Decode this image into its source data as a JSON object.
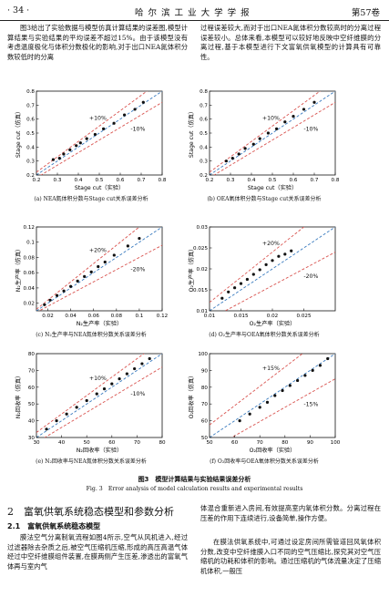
{
  "header": {
    "page": "· 34 ·",
    "journal": "哈 尔 滨 工 业 大 学 学 报",
    "volume": "第57卷"
  },
  "top_left_paragraph": "图3给出了实验数据与模型仿真计算结果的误差图,模型计算结果与实验结果的平均误差不超过15%。由于该模型没有考虑温度极化与体积分数极化的影响,对于出口NEA氮体积分数较低时的分离",
  "top_right_paragraph": "过程误差较大,而对于出口NEA氮体积分数较高时的分离过程误差较小。总体来看,本模型可以较好地反映中空纤维膜的分离过程,基于本模型进行下文富氧供氧模型的计算具有可靠性。",
  "chart_data": [
    {
      "type": "scatter",
      "caption": "(a) NEA氮体积分数与Stage cut关系误差分析",
      "xlabel": "Stage cut（实验）",
      "ylabel": "Stage cut（仿真）",
      "xlim": [
        0.2,
        0.8
      ],
      "ylim": [
        0.2,
        0.8
      ],
      "xticks": [
        0.2,
        0.3,
        0.4,
        0.5,
        0.6,
        0.7,
        0.8
      ],
      "yticks": [
        0.2,
        0.3,
        0.4,
        0.5,
        0.6,
        0.7,
        0.8
      ],
      "bands": [
        {
          "label": "+10%",
          "factor": 1.1
        },
        {
          "label": "-10%",
          "factor": 0.9
        }
      ],
      "points": [
        [
          0.28,
          0.31
        ],
        [
          0.31,
          0.32
        ],
        [
          0.33,
          0.35
        ],
        [
          0.36,
          0.38
        ],
        [
          0.39,
          0.41
        ],
        [
          0.41,
          0.43
        ],
        [
          0.44,
          0.46
        ],
        [
          0.48,
          0.49
        ],
        [
          0.52,
          0.53
        ],
        [
          0.57,
          0.57
        ],
        [
          0.62,
          0.63
        ],
        [
          0.67,
          0.67
        ],
        [
          0.71,
          0.72
        ]
      ]
    },
    {
      "type": "scatter",
      "caption": "(b) OEA氧体积分数与Stage cut关系误差分析",
      "xlabel": "Stage cut（实验）",
      "ylabel": "Stage cut（仿真）",
      "xlim": [
        0.2,
        0.8
      ],
      "ylim": [
        0.2,
        0.8
      ],
      "xticks": [
        0.2,
        0.3,
        0.4,
        0.5,
        0.6,
        0.7,
        0.8
      ],
      "yticks": [
        0.2,
        0.3,
        0.4,
        0.5,
        0.6,
        0.7,
        0.8
      ],
      "bands": [
        {
          "label": "+10%",
          "factor": 1.1
        },
        {
          "label": "-10%",
          "factor": 0.9
        }
      ],
      "points": [
        [
          0.28,
          0.3
        ],
        [
          0.31,
          0.32
        ],
        [
          0.34,
          0.35
        ],
        [
          0.37,
          0.39
        ],
        [
          0.41,
          0.42
        ],
        [
          0.44,
          0.46
        ],
        [
          0.48,
          0.5
        ],
        [
          0.52,
          0.53
        ],
        [
          0.56,
          0.58
        ],
        [
          0.6,
          0.62
        ],
        [
          0.65,
          0.67
        ],
        [
          0.7,
          0.72
        ]
      ]
    },
    {
      "type": "scatter",
      "caption": "(c) N₂生产率与NEA氮体积分数关系误差分析",
      "xlabel": "N₂生产率（实验）",
      "ylabel": "N₂生产率（仿真）",
      "xlim": [
        0.01,
        0.12
      ],
      "ylim": [
        0.01,
        0.12
      ],
      "xticks": [
        0.02,
        0.04,
        0.06,
        0.08,
        0.1,
        0.12
      ],
      "yticks": [
        0.02,
        0.04,
        0.06,
        0.08,
        0.1,
        0.12
      ],
      "bands": [
        {
          "label": "+20%",
          "factor": 1.2
        },
        {
          "label": "-20%",
          "factor": 0.8
        }
      ],
      "points": [
        [
          0.017,
          0.018
        ],
        [
          0.022,
          0.024
        ],
        [
          0.028,
          0.03
        ],
        [
          0.034,
          0.036
        ],
        [
          0.04,
          0.042
        ],
        [
          0.046,
          0.049
        ],
        [
          0.052,
          0.055
        ],
        [
          0.058,
          0.061
        ],
        [
          0.064,
          0.068
        ],
        [
          0.07,
          0.074
        ],
        [
          0.078,
          0.083
        ],
        [
          0.09,
          0.095
        ],
        [
          0.1,
          0.105
        ]
      ]
    },
    {
      "type": "scatter",
      "caption": "(d) O₂生产率与OEA氧体积分数关系误差分析",
      "xlabel": "O₂生产率（实验）",
      "ylabel": "O₂生产率（仿真）",
      "xlim": [
        0.01,
        0.03
      ],
      "ylim": [
        0.01,
        0.03
      ],
      "xticks": [
        0.01,
        0.015,
        0.02,
        0.025
      ],
      "yticks": [
        0.01,
        0.015,
        0.02,
        0.025,
        0.03
      ],
      "bands": [
        {
          "label": "+20%",
          "factor": 1.2
        },
        {
          "label": "-20%",
          "factor": 0.8
        }
      ],
      "points": [
        [
          0.012,
          0.013
        ],
        [
          0.013,
          0.0145
        ],
        [
          0.014,
          0.0155
        ],
        [
          0.015,
          0.0165
        ],
        [
          0.016,
          0.0175
        ],
        [
          0.017,
          0.0187
        ],
        [
          0.018,
          0.0198
        ],
        [
          0.019,
          0.021
        ],
        [
          0.02,
          0.022
        ],
        [
          0.021,
          0.023
        ],
        [
          0.022,
          0.0235
        ],
        [
          0.023,
          0.0243
        ]
      ]
    },
    {
      "type": "scatter",
      "caption": "(e) N₂回收率与NEA氮体积分数关系误差分析",
      "xlabel": "N₂回收率（实验）",
      "ylabel": "N₂回收率（仿真）",
      "xlim": [
        30,
        80
      ],
      "ylim": [
        30,
        80
      ],
      "xticks": [
        30,
        40,
        50,
        60,
        70,
        80
      ],
      "yticks": [
        30,
        40,
        50,
        60,
        70,
        80
      ],
      "bands": [
        {
          "label": "+10%",
          "factor": 1.1
        },
        {
          "label": "-10%",
          "factor": 0.9
        }
      ],
      "points": [
        [
          34,
          35
        ],
        [
          38,
          40
        ],
        [
          42,
          44
        ],
        [
          46,
          48
        ],
        [
          50,
          52
        ],
        [
          54,
          56
        ],
        [
          57,
          59
        ],
        [
          60,
          62
        ],
        [
          63,
          65
        ],
        [
          66,
          68
        ],
        [
          69,
          71
        ],
        [
          72,
          74
        ],
        [
          75,
          77
        ]
      ]
    },
    {
      "type": "scatter",
      "caption": "(f) O₂回收率与OEA氧体积分数关系误差分析",
      "xlabel": "O₂回收率（实验）",
      "ylabel": "O₂回收率（仿真）",
      "xlim": [
        50,
        100
      ],
      "ylim": [
        50,
        100
      ],
      "xticks": [
        50,
        60,
        70,
        80,
        90,
        100
      ],
      "yticks": [
        50,
        60,
        70,
        80,
        90,
        100
      ],
      "bands": [
        {
          "label": "+15%",
          "factor": 1.15
        },
        {
          "label": "-15%",
          "factor": 0.85
        }
      ],
      "points": [
        [
          62,
          60
        ],
        [
          66,
          64
        ],
        [
          70,
          68
        ],
        [
          73,
          71
        ],
        [
          76,
          75
        ],
        [
          79,
          78
        ],
        [
          82,
          81
        ],
        [
          85,
          84
        ],
        [
          88,
          87
        ],
        [
          91,
          90
        ],
        [
          94,
          93
        ],
        [
          97,
          97
        ]
      ]
    }
  ],
  "figure": {
    "title_cn": "图3　模型计算结果与实验结果误差分析",
    "title_en": "Fig. 3　Error analysis of model calculation results and experimental results"
  },
  "section2": {
    "heading": "2　富氧供氧系统稳态模型和参数分析",
    "subheading": "2.1　富氧供氧系统稳态模型"
  },
  "bottom_left_paragraph": "膜法空气分离制氧流程如图4所示,空气从风机进入,经过过滤器除去杂质之后,被空气压缩机压缩,形成的高压高温气体经过中空纤维膜组件装置,在膜两侧产生压差,渗透出的富氧气体再与室内气",
  "bottom_right_paragraph_1": "体混合重新进入房间,有效提高室内氧体积分数。分离过程在压差的作用下连续进行,设备简单,操作方便。",
  "bottom_right_paragraph_2": "在膜法供氧系统中,可通过设定房间所需管道回风氧体积分数,改变中空纤维膜入口不同的空气压缩比,探究其对空气压缩机的功耗和体积的影响。通过压缩机的气体流量决定了压缩机体积,一般压"
}
